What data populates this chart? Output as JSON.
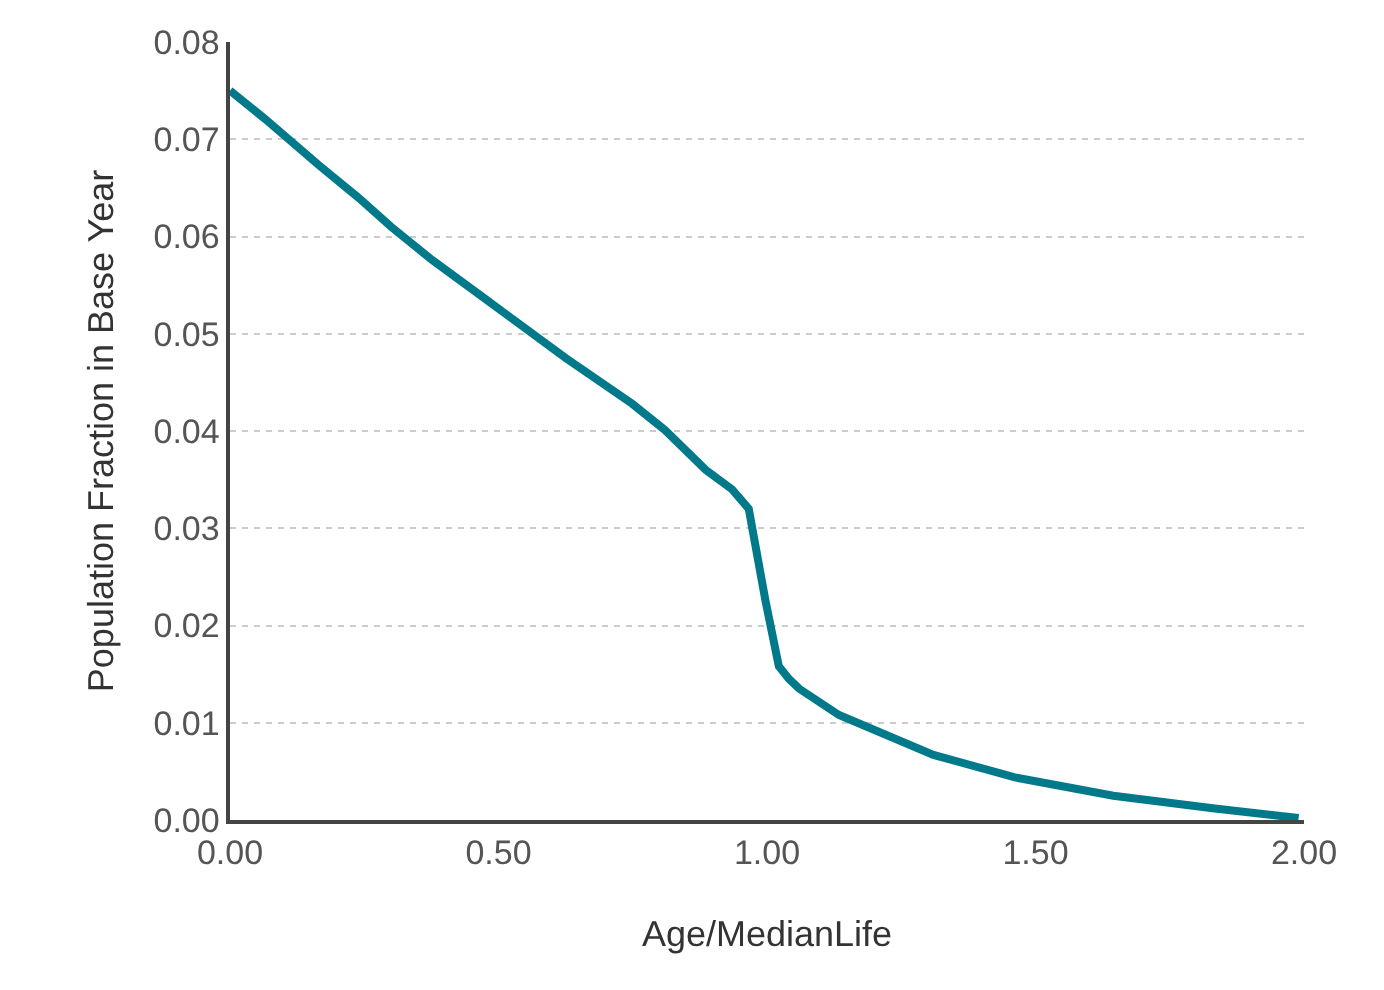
{
  "chart_data": {
    "type": "line",
    "xlabel": "Age/MedianLife",
    "ylabel": "Population Fraction in Base Year",
    "x": [
      0,
      0.065,
      0.164,
      0.239,
      0.3,
      0.376,
      0.475,
      0.625,
      0.749,
      0.81,
      0.886,
      0.935,
      0.966,
      0.997,
      1.022,
      1.041,
      1.06,
      1.134,
      1.31,
      1.46,
      1.645,
      1.83,
      1.99
    ],
    "series": [
      {
        "color": "#007a8a",
        "values": [
          0.075,
          0.0721,
          0.0674,
          0.064,
          0.061,
          0.0576,
          0.0536,
          0.0475,
          0.0428,
          0.0401,
          0.036,
          0.034,
          0.032,
          0.0226,
          0.0158,
          0.0145,
          0.0135,
          0.0108,
          0.0067,
          0.0044,
          0.0025,
          0.0012,
          0.0002
        ]
      }
    ],
    "xlim": [
      0,
      2
    ],
    "xticks": [
      {
        "value": 0,
        "label": "0.00"
      },
      {
        "value": 0.5,
        "label": "0.50"
      },
      {
        "value": 1,
        "label": "1.00"
      },
      {
        "value": 1.5,
        "label": "1.50"
      },
      {
        "value": 2,
        "label": "2.00"
      }
    ],
    "ylim": [
      0,
      0.08
    ],
    "yticks": [
      {
        "value": 0,
        "label": "0.00"
      },
      {
        "value": 0.01,
        "label": "0.01"
      },
      {
        "value": 0.02,
        "label": "0.02"
      },
      {
        "value": 0.03,
        "label": "0.03"
      },
      {
        "value": 0.04,
        "label": "0.04"
      },
      {
        "value": 0.05,
        "label": "0.05"
      },
      {
        "value": 0.06,
        "label": "0.06"
      },
      {
        "value": 0.07,
        "label": "0.07"
      },
      {
        "value": 0.08,
        "label": "0.08"
      }
    ],
    "grid": "y",
    "marker": "none",
    "line_style": "solid"
  }
}
